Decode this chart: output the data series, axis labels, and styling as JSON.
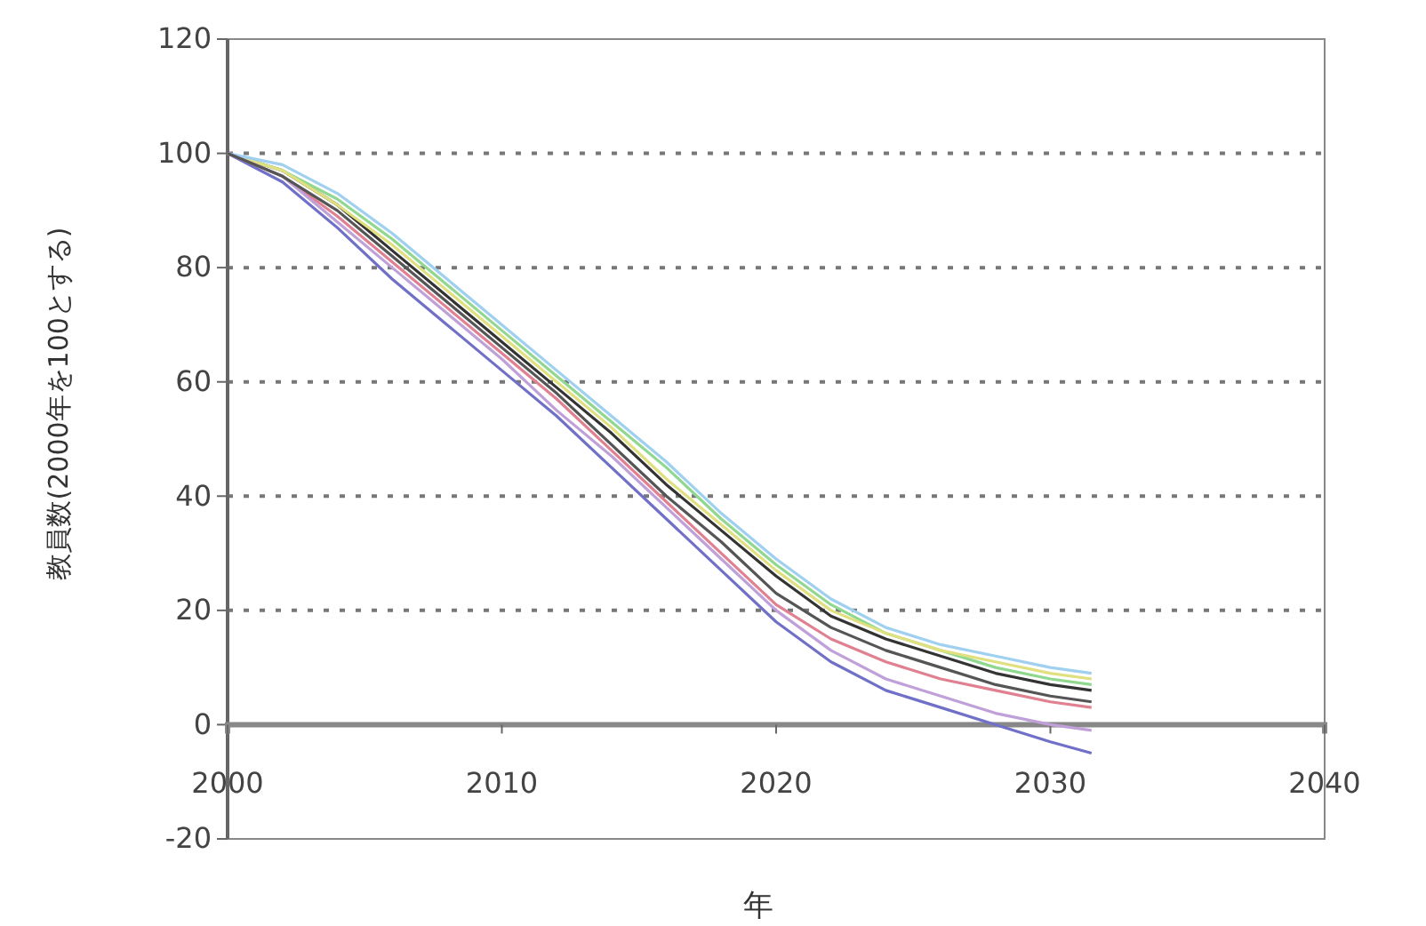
{
  "chart_data": {
    "type": "line",
    "xlabel": "年",
    "ylabel": "教員数(2000年を100とする)",
    "x": [
      2000,
      2002,
      2004,
      2006,
      2008,
      2010,
      2012,
      2014,
      2016,
      2018,
      2020,
      2022,
      2024,
      2026,
      2028,
      2030,
      2031.5
    ],
    "xlim": [
      2000,
      2040
    ],
    "xticks": [
      2000,
      2010,
      2020,
      2030,
      2040
    ],
    "ylim": [
      -20,
      120
    ],
    "yticks": [
      -20,
      0,
      20,
      40,
      60,
      80,
      100,
      120
    ],
    "grid": "y",
    "marker": "none",
    "line_style": "solid",
    "series": [
      {
        "color": "#333333",
        "values": [
          100,
          97,
          91,
          83,
          75,
          67,
          59,
          51,
          42,
          34,
          26,
          19,
          15,
          12,
          9,
          7,
          6
        ]
      },
      {
        "color": "#7070c8",
        "values": [
          100,
          95,
          87,
          78,
          70,
          62,
          54,
          45,
          36,
          27,
          18,
          11,
          6,
          3,
          0,
          -3,
          -5
        ]
      },
      {
        "color": "#90d890",
        "values": [
          100,
          97,
          92,
          85,
          77,
          69,
          61,
          53,
          45,
          36,
          28,
          21,
          16,
          13,
          10,
          8,
          7
        ]
      },
      {
        "color": "#e0e080",
        "values": [
          100,
          97,
          91,
          84,
          76,
          68,
          60,
          52,
          43,
          35,
          27,
          20,
          16,
          13,
          11,
          9,
          8
        ]
      },
      {
        "color": "#e08090",
        "values": [
          100,
          96,
          89,
          81,
          73,
          65,
          57,
          48,
          39,
          30,
          21,
          15,
          11,
          8,
          6,
          4,
          3
        ]
      },
      {
        "color": "#9fd0f0",
        "values": [
          100,
          98,
          93,
          86,
          78,
          70,
          62,
          54,
          46,
          37,
          29,
          22,
          17,
          14,
          12,
          10,
          9
        ]
      },
      {
        "color": "#c0a0d8",
        "values": [
          100,
          96,
          88,
          80,
          72,
          64,
          55,
          47,
          38,
          29,
          20,
          13,
          8,
          5,
          2,
          0,
          -1
        ]
      },
      {
        "color": "#555555",
        "values": [
          100,
          96,
          90,
          82,
          74,
          66,
          58,
          49,
          40,
          32,
          23,
          17,
          13,
          10,
          7,
          5,
          4
        ]
      }
    ]
  }
}
